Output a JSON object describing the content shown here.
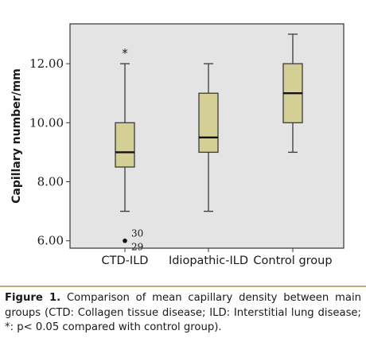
{
  "chart_data": {
    "type": "boxplot",
    "ylabel": "Capillary number/mm",
    "xlabel": "",
    "ylim": [
      5.75,
      13.35
    ],
    "yticks": [
      6.0,
      8.0,
      10.0,
      12.0
    ],
    "ytick_labels": [
      "6.00",
      "8.00",
      "10.00",
      "12.00"
    ],
    "grid": false,
    "categories": [
      "CTD-ILD",
      "Idiopathic-ILD",
      "Control group"
    ],
    "boxes": [
      {
        "category": "CTD-ILD",
        "whisker_low": 7.0,
        "q1": 8.5,
        "median": 9.0,
        "q3": 10.0,
        "whisker_high": 12.0,
        "outliers": [
          {
            "value": 6.0,
            "labels": [
              "30",
              "29"
            ]
          }
        ],
        "significance_marker": "*"
      },
      {
        "category": "Idiopathic-ILD",
        "whisker_low": 7.0,
        "q1": 9.0,
        "median": 9.5,
        "q3": 11.0,
        "whisker_high": 12.0,
        "outliers": [],
        "significance_marker": ""
      },
      {
        "category": "Control group",
        "whisker_low": 9.0,
        "q1": 10.0,
        "median": 11.0,
        "q3": 12.0,
        "whisker_high": 13.0,
        "outliers": [],
        "significance_marker": ""
      }
    ],
    "colors": {
      "plot_background": "#e4e4e4",
      "box_fill": "#d4cf94",
      "box_stroke": "#3a3a3a"
    }
  },
  "caption": {
    "label": "Figure 1.",
    "text": " Comparison of mean capillary density between main groups (CTD: Collagen tissue disease; ILD: Interstitial lung disease; *: p< 0.05 compared with control group)."
  }
}
